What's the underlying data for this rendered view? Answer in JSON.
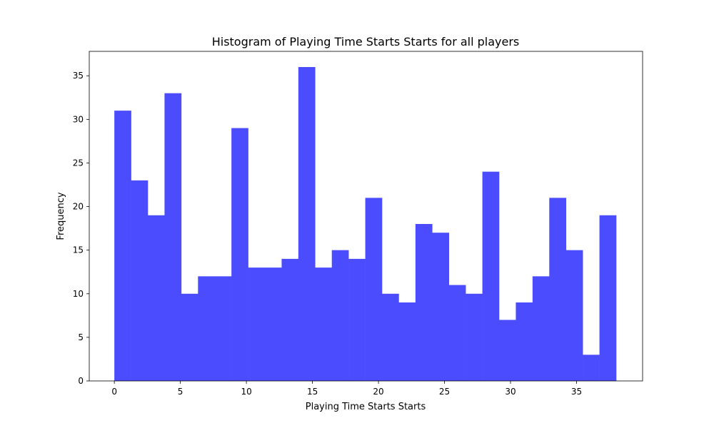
{
  "chart_data": {
    "type": "bar",
    "title": "Histogram of Playing Time Starts Starts for all players",
    "xlabel": "Playing Time Starts Starts",
    "ylabel": "Frequency",
    "color": "#4c4cff",
    "xlim": [
      -1.9,
      40.0
    ],
    "ylim": [
      0,
      37.8
    ],
    "bin_edges": [
      0,
      1.2667,
      2.5333,
      3.8,
      5.0667,
      6.3333,
      7.6,
      8.8667,
      10.1333,
      11.4,
      12.6667,
      13.9333,
      15.2,
      16.4667,
      17.7333,
      19.0,
      20.2667,
      21.5333,
      22.8,
      24.0667,
      25.3333,
      26.6,
      27.8667,
      29.1333,
      30.4,
      31.6667,
      32.9333,
      34.2,
      35.4667,
      36.7333,
      38.0
    ],
    "values": [
      31,
      23,
      19,
      33,
      10,
      12,
      12,
      29,
      13,
      13,
      14,
      36,
      13,
      15,
      14,
      21,
      10,
      9,
      18,
      17,
      11,
      10,
      24,
      7,
      9,
      12,
      21,
      15,
      3,
      19
    ],
    "x_ticks": [
      0,
      5,
      10,
      15,
      20,
      25,
      30,
      35
    ],
    "y_ticks": [
      0,
      5,
      10,
      15,
      20,
      25,
      30,
      35
    ],
    "grid": false,
    "legend": "none"
  }
}
